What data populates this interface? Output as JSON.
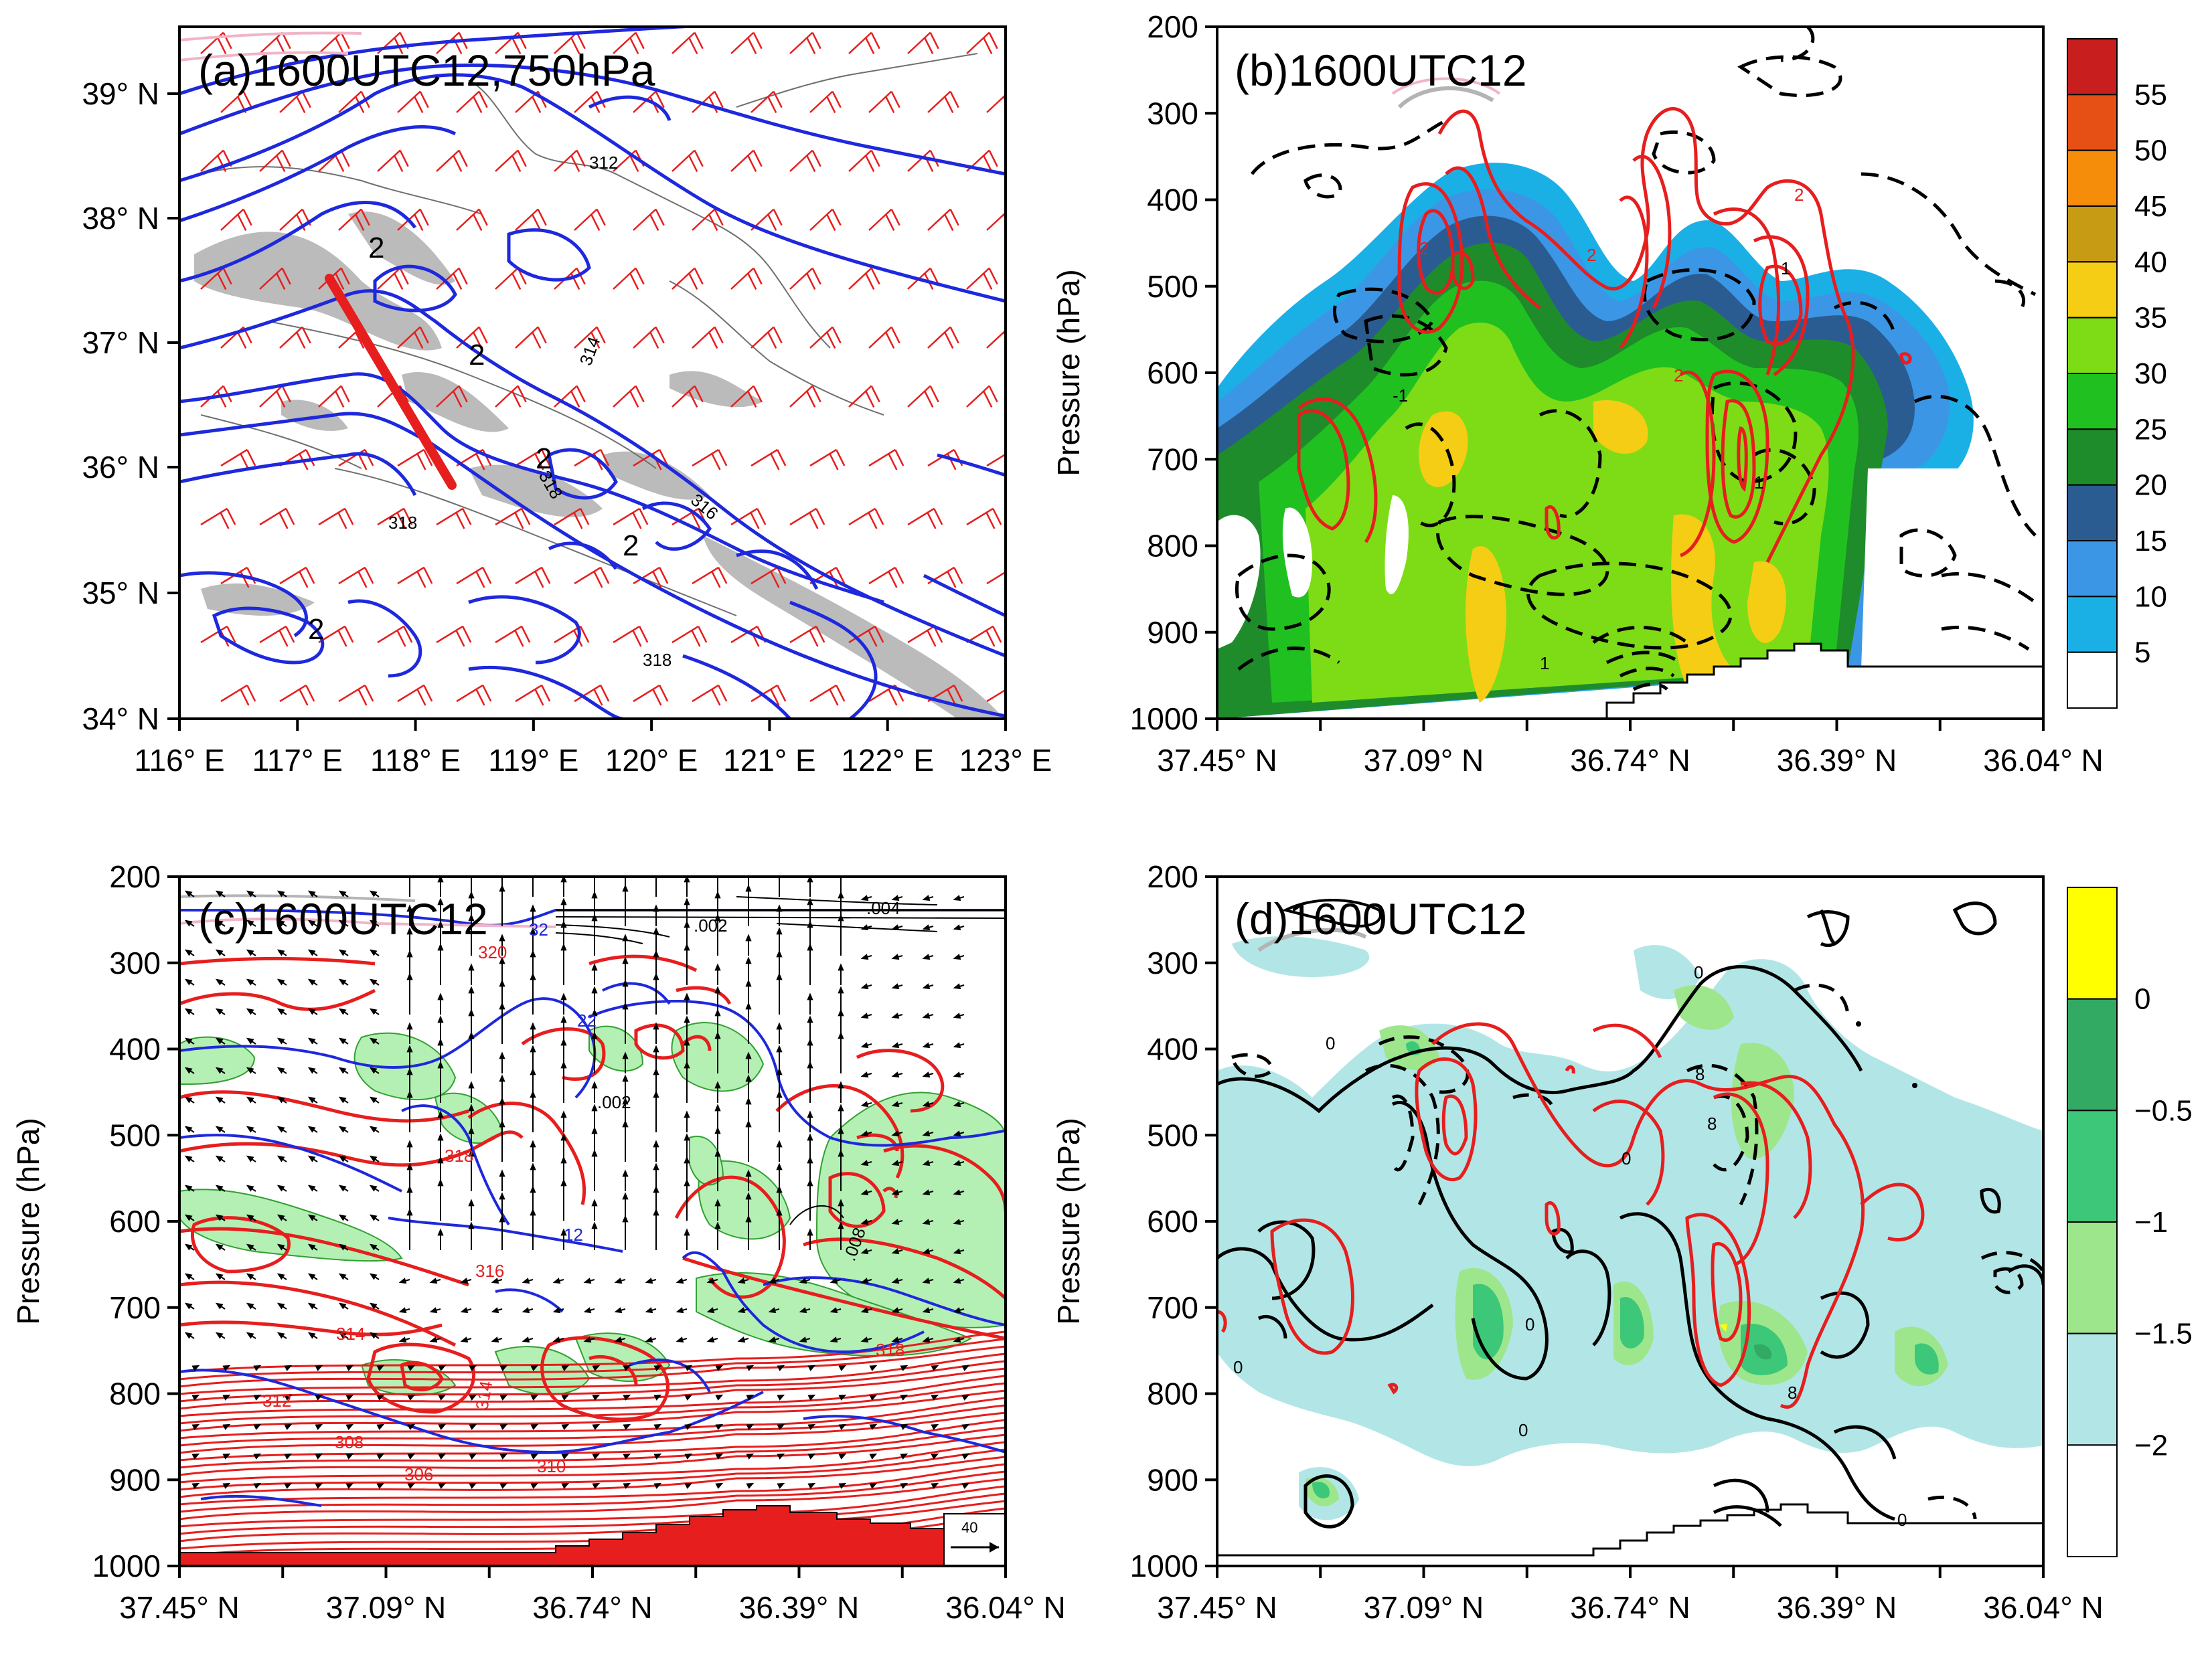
{
  "figure": {
    "panels": [
      {
        "id": "a",
        "title": "(a)1600UTC12,750hPa",
        "y_tick_labels": [
          "39° N",
          "38° N",
          "37° N",
          "36° N",
          "35° N",
          "34° N"
        ],
        "x_tick_labels": [
          "116° E",
          "117° E",
          "118° E",
          "119° E",
          "120° E",
          "121° E",
          "122° E",
          "123° E"
        ],
        "contour_labels": [
          "312",
          "314",
          "318",
          "316",
          "318",
          "318",
          "2",
          "2",
          "2",
          "2",
          "2"
        ]
      },
      {
        "id": "b",
        "title": "(b)1600UTC12",
        "y_axis_title": "Pressure (hPa)",
        "y_tick_labels": [
          "200",
          "300",
          "400",
          "500",
          "600",
          "700",
          "800",
          "900",
          "1000"
        ],
        "x_tick_labels": [
          "37.45° N",
          "37.09° N",
          "36.74° N",
          "36.39° N",
          "36.04° N"
        ],
        "contour_labels": [
          "-1",
          "1",
          "2",
          "2",
          "2",
          "2",
          "1",
          "1"
        ],
        "colorbar": {
          "labels": [
            "55",
            "50",
            "45",
            "40",
            "35",
            "30",
            "25",
            "20",
            "15",
            "10",
            "5"
          ],
          "colors": [
            "#ffffff",
            "#1ab0e6",
            "#3c96e6",
            "#2a5c92",
            "#1e8c2a",
            "#21c021",
            "#7ddc16",
            "#f5cd14",
            "#c89b14",
            "#f58c0a",
            "#e65014",
            "#c81e1e"
          ]
        }
      },
      {
        "id": "c",
        "title": "(c)1600UTC12",
        "y_axis_title": "Pressure (hPa)",
        "y_tick_labels": [
          "200",
          "300",
          "400",
          "500",
          "600",
          "700",
          "800",
          "900",
          "1000"
        ],
        "x_tick_labels": [
          "37.45° N",
          "37.09° N",
          "36.74° N",
          "36.39° N",
          "36.04° N"
        ],
        "contour_labels": [
          "320",
          "318",
          "316",
          "314",
          "314",
          "312",
          "308",
          "306",
          "310",
          "318",
          "32",
          "22",
          "12",
          ".002",
          ".004",
          ".002",
          ".008"
        ],
        "reference_vector_label": "40"
      },
      {
        "id": "d",
        "title": "(d)1600UTC12",
        "y_axis_title": "Pressure (hPa)",
        "y_tick_labels": [
          "200",
          "300",
          "400",
          "500",
          "600",
          "700",
          "800",
          "900",
          "1000"
        ],
        "x_tick_labels": [
          "37.45° N",
          "37.09° N",
          "36.74° N",
          "36.39° N",
          "36.04° N"
        ],
        "contour_labels": [
          "0",
          "0",
          "0",
          "0",
          "0",
          "0",
          "0",
          "8",
          "8",
          "8"
        ],
        "colorbar": {
          "labels": [
            "0",
            "−0.5",
            "−1",
            "−1.5",
            "−2"
          ],
          "colors": [
            "#ffffff",
            "#b2e6e6",
            "#9ee68c",
            "#3cc878",
            "#32aa64",
            "#ffff00"
          ]
        }
      }
    ]
  }
}
